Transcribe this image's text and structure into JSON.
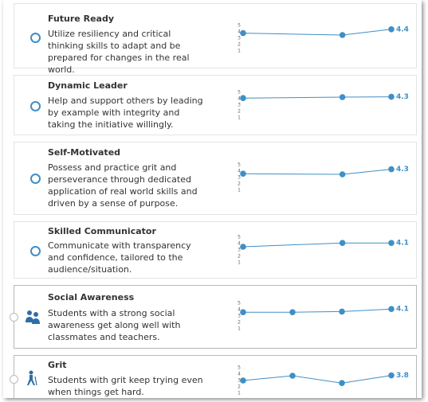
{
  "cards": [
    {
      "title": "Future Ready",
      "description": "Utilize resiliency and critical thinking skills to adapt and be prepared for changes in the real world.",
      "chart": {
        "type": "line",
        "values": [
          3.8,
          3.5,
          4.4
        ],
        "ylim": [
          1,
          5
        ],
        "yticks": [
          1,
          2,
          3,
          4,
          5
        ],
        "color": "#3f8fc6"
      }
    },
    {
      "title": "Dynamic Leader",
      "description": "Help and support others by leading by example with integrity and taking the initiative willingly.",
      "chart": {
        "type": "line",
        "values": [
          4.1,
          4.25,
          4.3
        ],
        "ylim": [
          1,
          5
        ],
        "yticks": [
          1,
          2,
          3,
          4,
          5
        ],
        "color": "#3f8fc6"
      }
    },
    {
      "title": "Self-Motivated",
      "description": "Possess and practice grit and perseverance through dedicated application of real world skills and driven by a sense of purpose.",
      "chart": {
        "type": "line",
        "values": [
          3.6,
          3.5,
          4.3
        ],
        "ylim": [
          1,
          5
        ],
        "yticks": [
          1,
          2,
          3,
          4,
          5
        ],
        "color": "#3f8fc6"
      }
    },
    {
      "title": "Skilled Communicator",
      "description": "Communicate with transparency and confidence, tailored to the audience/situation.",
      "chart": {
        "type": "line",
        "values": [
          3.5,
          4.1,
          4.1
        ],
        "ylim": [
          1,
          5
        ],
        "yticks": [
          1,
          2,
          3,
          4,
          5
        ],
        "color": "#3f8fc6"
      }
    },
    {
      "title": "Social Awareness",
      "description": "Students with a strong social awareness get along well with classmates and teachers.",
      "chart": {
        "type": "line",
        "values": [
          3.6,
          3.6,
          3.7,
          4.1
        ],
        "ylim": [
          1,
          5
        ],
        "yticks": [
          1,
          2,
          3,
          4,
          5
        ],
        "color": "#3f8fc6"
      }
    },
    {
      "title": "Grit",
      "description": "Students with grit keep trying even when things get hard.",
      "chart": {
        "type": "line",
        "values": [
          3.0,
          3.75,
          2.6,
          3.8
        ],
        "ylim": [
          1,
          5
        ],
        "yticks": [
          1,
          2,
          3,
          4,
          5
        ],
        "color": "#3f8fc6"
      }
    }
  ]
}
